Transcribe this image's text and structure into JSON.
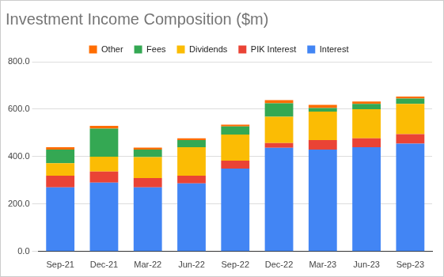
{
  "chart_data": {
    "type": "bar",
    "title": "Investment Income Composition ($m)",
    "categories": [
      "Sep-21",
      "Dec-21",
      "Mar-22",
      "Jun-22",
      "Sep-22",
      "Dec-22",
      "Mar-23",
      "Jun-23",
      "Sep-23"
    ],
    "series": [
      {
        "name": "Interest",
        "color": "#4285f4",
        "values": [
          270,
          290,
          270,
          287,
          350,
          437,
          430,
          440,
          455
        ]
      },
      {
        "name": "PIK Interest",
        "color": "#ea4335",
        "values": [
          50,
          47,
          40,
          33,
          33,
          20,
          40,
          37,
          40
        ]
      },
      {
        "name": "Dividends",
        "color": "#fbbc04",
        "values": [
          52,
          63,
          88,
          120,
          110,
          111,
          120,
          123,
          127
        ]
      },
      {
        "name": "Fees",
        "color": "#34a853",
        "values": [
          58,
          118,
          32,
          30,
          34,
          57,
          15,
          22,
          23
        ]
      },
      {
        "name": "Other",
        "color": "#ff6d01",
        "values": [
          10,
          12,
          8,
          7,
          8,
          13,
          13,
          10,
          8
        ]
      }
    ],
    "stacked": true,
    "ylim": [
      0,
      800
    ],
    "yticks": [
      {
        "value": 0,
        "label": "0.0"
      },
      {
        "value": 200,
        "label": "200.0"
      },
      {
        "value": 400,
        "label": "400.0"
      },
      {
        "value": 600,
        "label": "600.0"
      },
      {
        "value": 800,
        "label": "800.0"
      }
    ],
    "grid": true,
    "legend": "top"
  }
}
